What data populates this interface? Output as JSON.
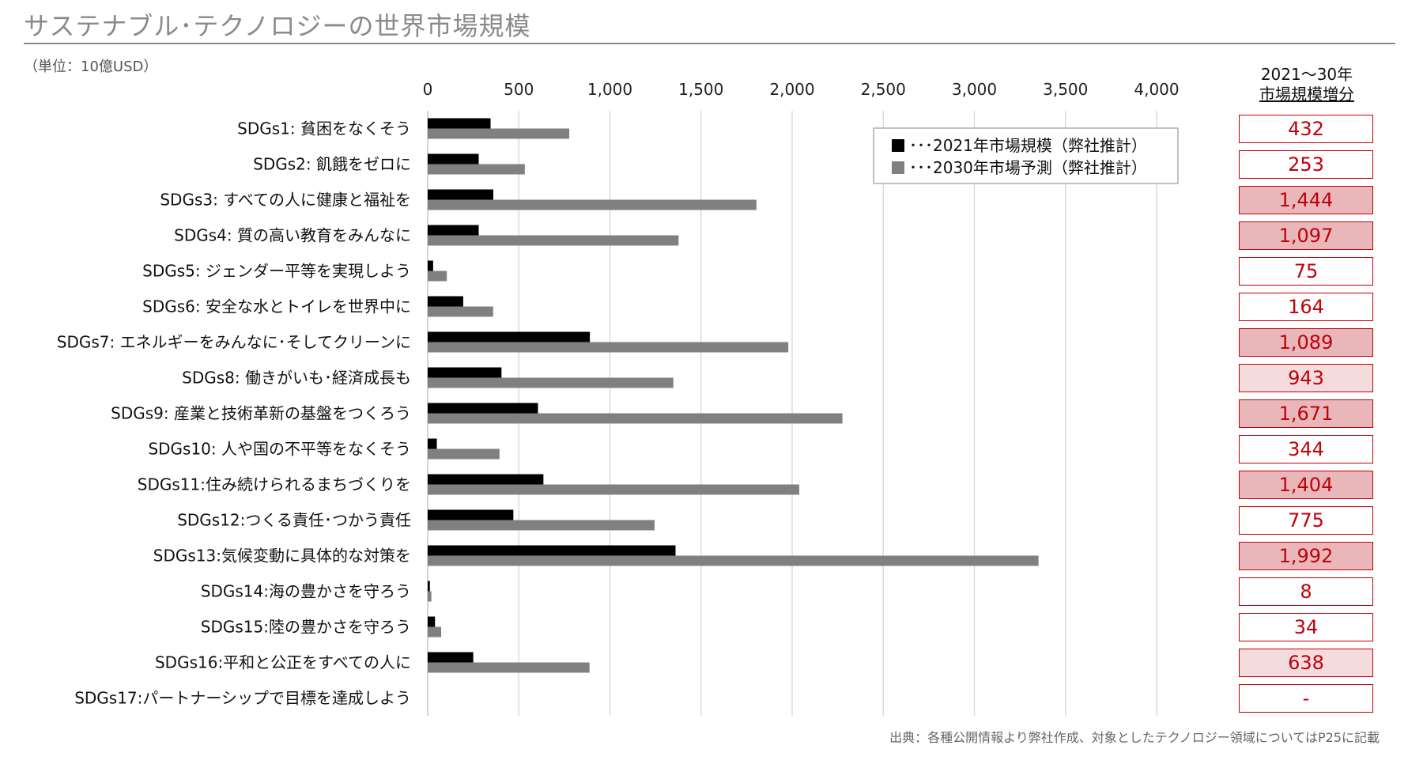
{
  "title": "サステナブル･テクノロジーの世界市場規模",
  "unit_note": "（単位：10億USD）",
  "source_note": "出典：各種公開情報より弊社作成、対象としたテクノロジー領域についてはP25に記載",
  "increase_header": {
    "line1": "2021～30年",
    "line2": "市場規模増分"
  },
  "colors": {
    "series_2021": "#000000",
    "series_2030": "#808080",
    "increase_border": "#c0000b",
    "increase_high": "#e9b7ba",
    "increase_mid": "#f4dbdc"
  },
  "chart_data": {
    "type": "bar",
    "orientation": "horizontal",
    "xlim": [
      0,
      4000
    ],
    "x_ticks": [
      "0",
      "500",
      "1,000",
      "1,500",
      "2,000",
      "2,500",
      "3,000",
      "3,500",
      "4,000"
    ],
    "x_tick_values": [
      0,
      500,
      1000,
      1500,
      2000,
      2500,
      3000,
      3500,
      4000
    ],
    "grid": true,
    "legend_position": "top-right",
    "categories": [
      "SDGs1: 貧困をなくそう",
      "SDGs2: 飢餓をゼロに",
      "SDGs3: すべての人に健康と福祉を",
      "SDGs4: 質の高い教育をみんなに",
      "SDGs5: ジェンダー平等を実現しよう",
      "SDGs6: 安全な水とトイレを世界中に",
      "SDGs7: エネルギーをみんなに･そしてクリーンに",
      "SDGs8: 働きがいも･経済成長も",
      "SDGs9: 産業と技術革新の基盤をつくろう",
      "SDGs10: 人や国の不平等をなくそう",
      "SDGs11:住み続けられるまちづくりを",
      "SDGs12:つくる責任･つかう責任",
      "SDGs13:気候変動に具体的な対策を",
      "SDGs14:海の豊かさを守ろう",
      "SDGs15:陸の豊かさを守ろう",
      "SDGs16:平和と公正をすべての人に",
      "SDGs17:パートナーシップで目標を達成しよう"
    ],
    "series": [
      {
        "name": "･･･2021年市場規模（弊社推計）",
        "values": [
          345,
          280,
          360,
          280,
          30,
          195,
          890,
          405,
          605,
          50,
          635,
          470,
          1360,
          12,
          40,
          250,
          0
        ]
      },
      {
        "name": "･･･2030年市場予測（弊社推計）",
        "values": [
          777,
          533,
          1804,
          1377,
          105,
          359,
          1979,
          1348,
          2276,
          394,
          2039,
          1245,
          3352,
          20,
          74,
          888,
          0
        ]
      }
    ],
    "increase": {
      "labels": [
        "432",
        "253",
        "1,444",
        "1,097",
        "75",
        "164",
        "1,089",
        "943",
        "1,671",
        "344",
        "1,404",
        "775",
        "1,992",
        "8",
        "34",
        "638",
        "-"
      ],
      "levels": [
        "low",
        "low",
        "high",
        "high",
        "low",
        "low",
        "high",
        "mid",
        "high",
        "low",
        "high",
        "low",
        "high",
        "low",
        "low",
        "mid",
        "low"
      ]
    }
  }
}
